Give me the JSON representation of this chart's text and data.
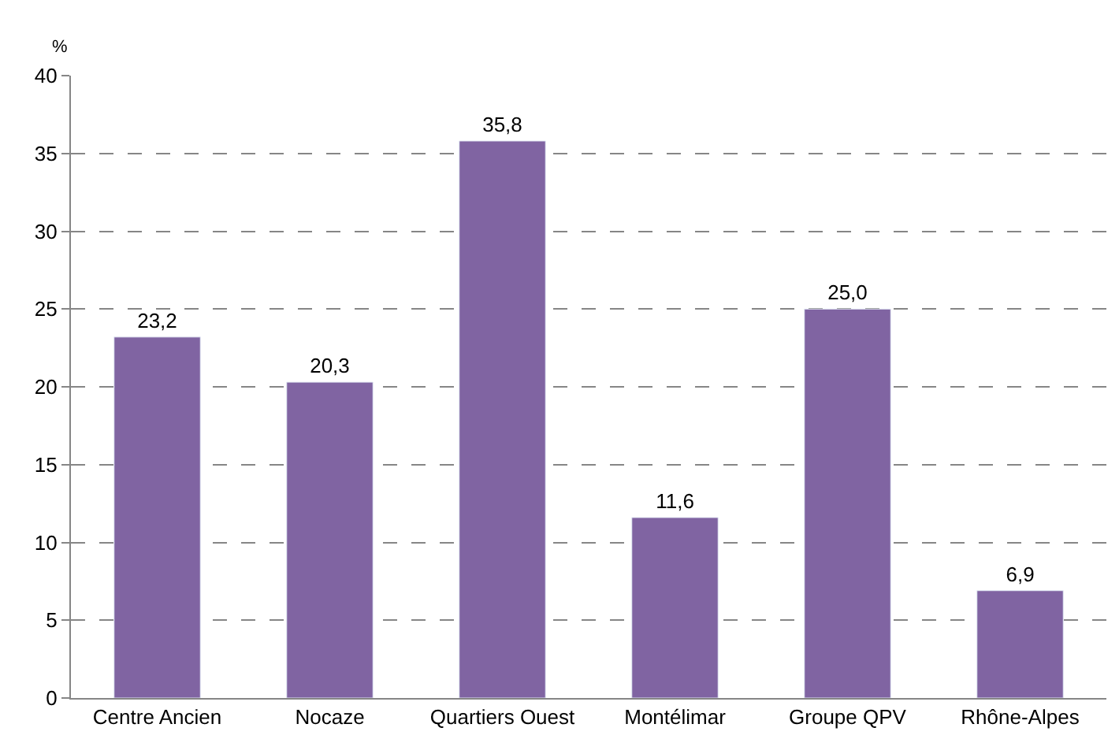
{
  "chart_data": {
    "type": "bar",
    "ylabel": "%",
    "categories": [
      "Centre Ancien",
      "Nocaze",
      "Quartiers Ouest",
      "Montélimar",
      "Groupe QPV",
      "Rhône-Alpes"
    ],
    "values": [
      23.2,
      20.3,
      35.8,
      11.6,
      25.0,
      6.9
    ],
    "value_labels": [
      "23,2",
      "20,3",
      "35,8",
      "11,6",
      "25,0",
      "6,9"
    ],
    "color": "#8064a2",
    "ylim": [
      0,
      40
    ],
    "yticks": [
      0,
      5,
      10,
      15,
      20,
      25,
      30,
      35,
      40
    ],
    "grid": "y",
    "legend": false
  }
}
